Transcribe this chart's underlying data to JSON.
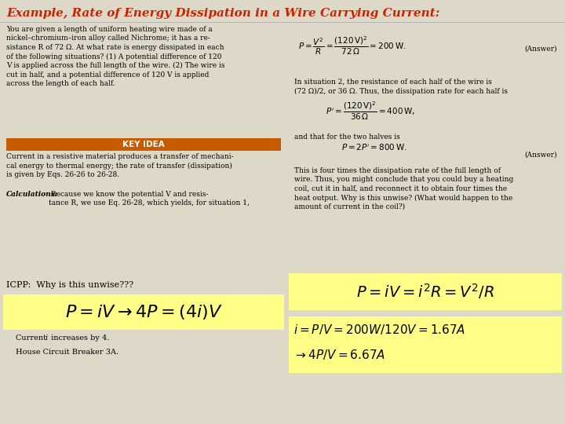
{
  "title": "Example, Rate of Energy Dissipation in a Wire Carrying Current:",
  "title_color": "#cc2200",
  "title_fontsize": 11,
  "bg_color": "#ddd8c8",
  "left_text_para": "You are given a length of uniform heating wire made of a\nnickel–chromium–iron alloy called Nichrome; it has a re-\nsistance R of 72 Ω. At what rate is energy dissipated in each\nof the following situations? (1) A potential difference of 120\nV is applied across the full length of the wire. (2) The wire is\ncut in half, and a potential difference of 120 V is applied\nacross the length of each half.",
  "key_idea_label": "KEY IDEA",
  "key_idea_bg": "#c85a00",
  "key_idea_body": "Current in a resistive material produces a transfer of mechani-\ncal energy to thermal energy; the rate of transfer (dissipation)\nis given by Eqs. 26-26 to 26-28.",
  "calc_bold": "Calculations:",
  "calc_rest": " Because we know the potential V and resis-\ntance R, we use Eq. 26-28, which yields, for situation 1,",
  "right_mid1": "In situation 2, the resistance of each half of the wire is\n(72 Ω)/2, or 36 Ω. Thus, the dissipation rate for each half is",
  "right_and": "and that for the two halves is",
  "right_bottom": "This is four times the dissipation rate of the full length of\nwire. Thus, you might conclude that you could buy a heating\ncoil, cut it in half, and reconnect it to obtain four times the\nheat output. Why is this unwise? (What would happen to the\namount of current in the coil?)",
  "icpp_text": "ICPP:  Why is this unwise???",
  "current_text": "Current ",
  "current_i": "i",
  "current_rest": " increases by 4.",
  "breaker_text": "House Circuit Breaker 3A.",
  "yellow_color": "#ffff88",
  "orange_key": "#c85a00",
  "answer_text": "(Answer)",
  "body_fontsize": 6.5,
  "small_fontsize": 6.5,
  "formula_fontsize": 7.5,
  "icpp_fontsize": 8.0,
  "yellow1_fontsize": 16.0,
  "yellow2_fontsize": 14.0,
  "yellow3_fontsize": 11.0
}
